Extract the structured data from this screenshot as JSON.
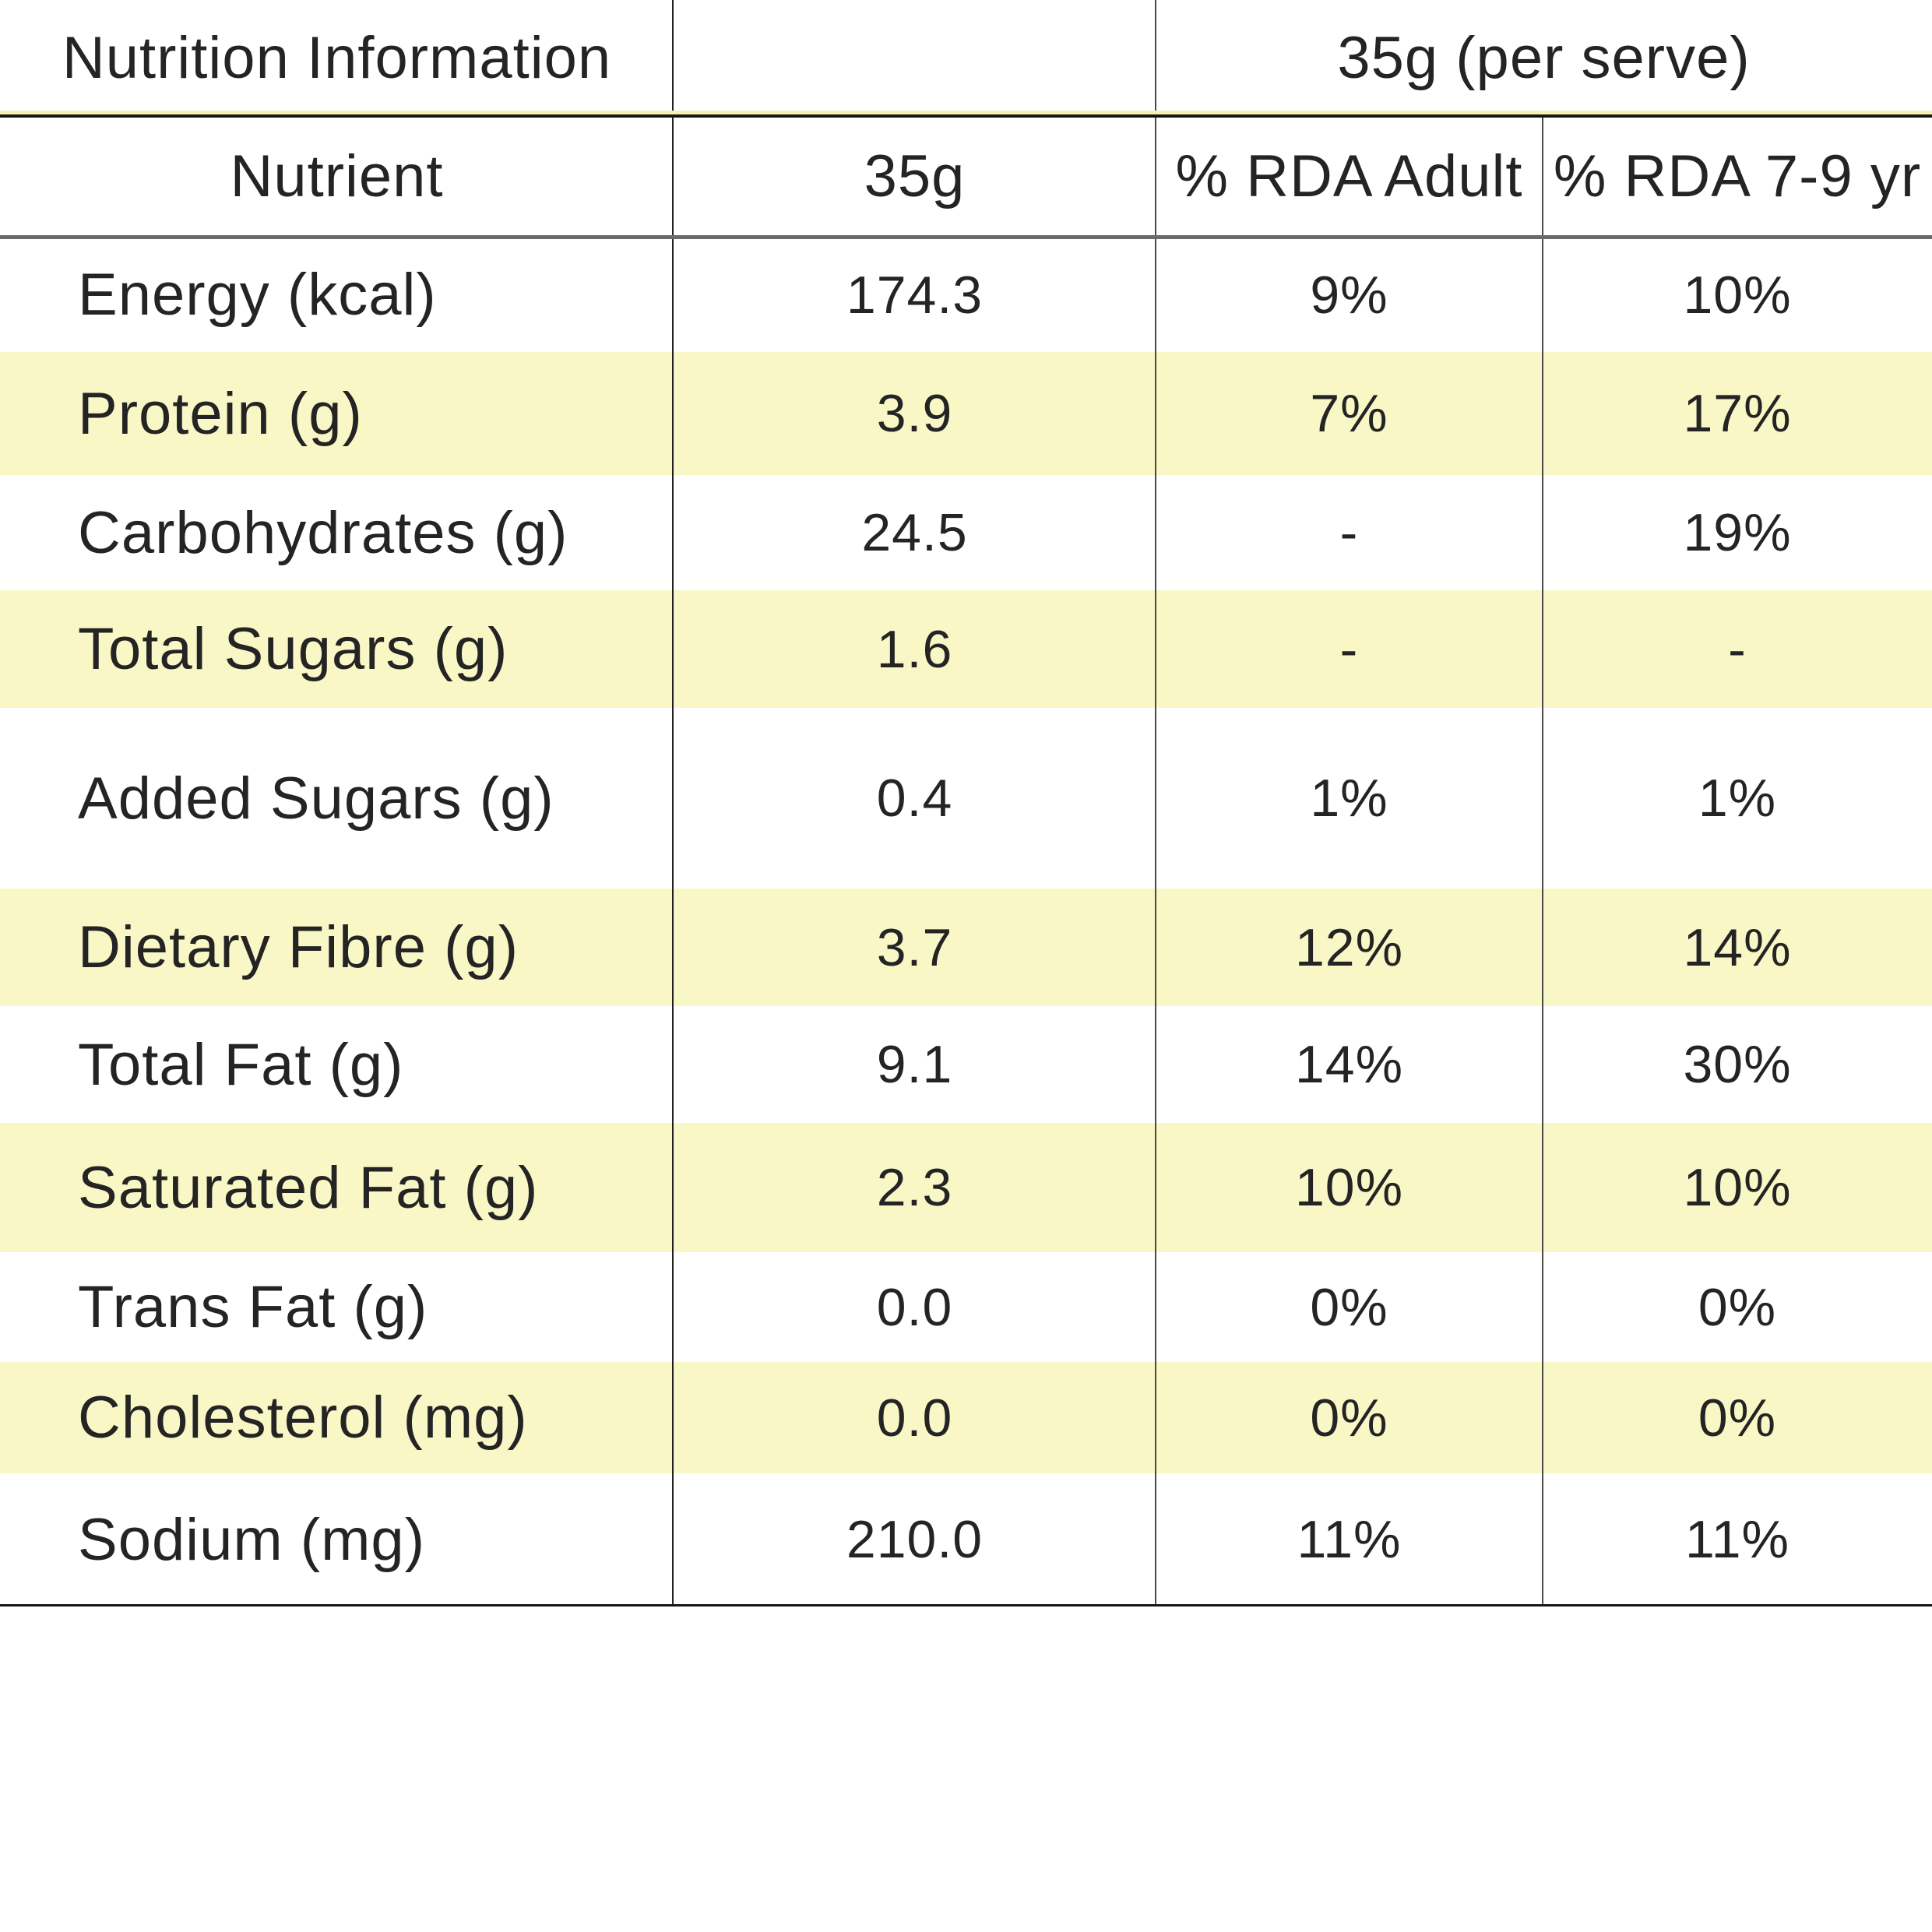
{
  "table": {
    "header": {
      "title": "Nutrition Information",
      "serving": "35g (per serve)"
    },
    "columns": {
      "nutrient": "Nutrient",
      "amount": "35g",
      "rda_adult": "% RDA Adult",
      "rda_child": "% RDA 7-9 yr"
    },
    "rows": [
      {
        "nutrient": "Energy (kcal)",
        "amount": "174.3",
        "rda_adult": "9%",
        "rda_child": "10%",
        "highlight": false
      },
      {
        "nutrient": "Protein (g)",
        "amount": "3.9",
        "rda_adult": "7%",
        "rda_child": "17%",
        "highlight": true
      },
      {
        "nutrient": "Carbohydrates (g)",
        "amount": "24.5",
        "rda_adult": "-",
        "rda_child": "19%",
        "highlight": false
      },
      {
        "nutrient": "Total Sugars (g)",
        "amount": "1.6",
        "rda_adult": "-",
        "rda_child": "-",
        "highlight": true
      },
      {
        "nutrient": "Added Sugars (g)",
        "amount": "0.4",
        "rda_adult": "1%",
        "rda_child": "1%",
        "highlight": false
      },
      {
        "nutrient": "Dietary Fibre (g)",
        "amount": "3.7",
        "rda_adult": "12%",
        "rda_child": "14%",
        "highlight": true
      },
      {
        "nutrient": "Total Fat (g)",
        "amount": "9.1",
        "rda_adult": "14%",
        "rda_child": "30%",
        "highlight": false
      },
      {
        "nutrient": "Saturated Fat (g)",
        "amount": "2.3",
        "rda_adult": "10%",
        "rda_child": "10%",
        "highlight": true
      },
      {
        "nutrient": "Trans Fat (g)",
        "amount": "0.0",
        "rda_adult": "0%",
        "rda_child": "0%",
        "highlight": false
      },
      {
        "nutrient": "Cholesterol (mg)",
        "amount": "0.0",
        "rda_adult": "0%",
        "rda_child": "0%",
        "highlight": true
      },
      {
        "nutrient": "Sodium (mg)",
        "amount": "210.0",
        "rda_adult": "11%",
        "rda_child": "11%",
        "highlight": false
      }
    ],
    "colors": {
      "highlight_row": "#FAF7C6",
      "accent_line_yellow": "#F6F1B4",
      "line_black": "#161616",
      "line_gray": "#6b6b6b",
      "line_vertical": "#3a3a3a",
      "text": "#242424"
    }
  }
}
